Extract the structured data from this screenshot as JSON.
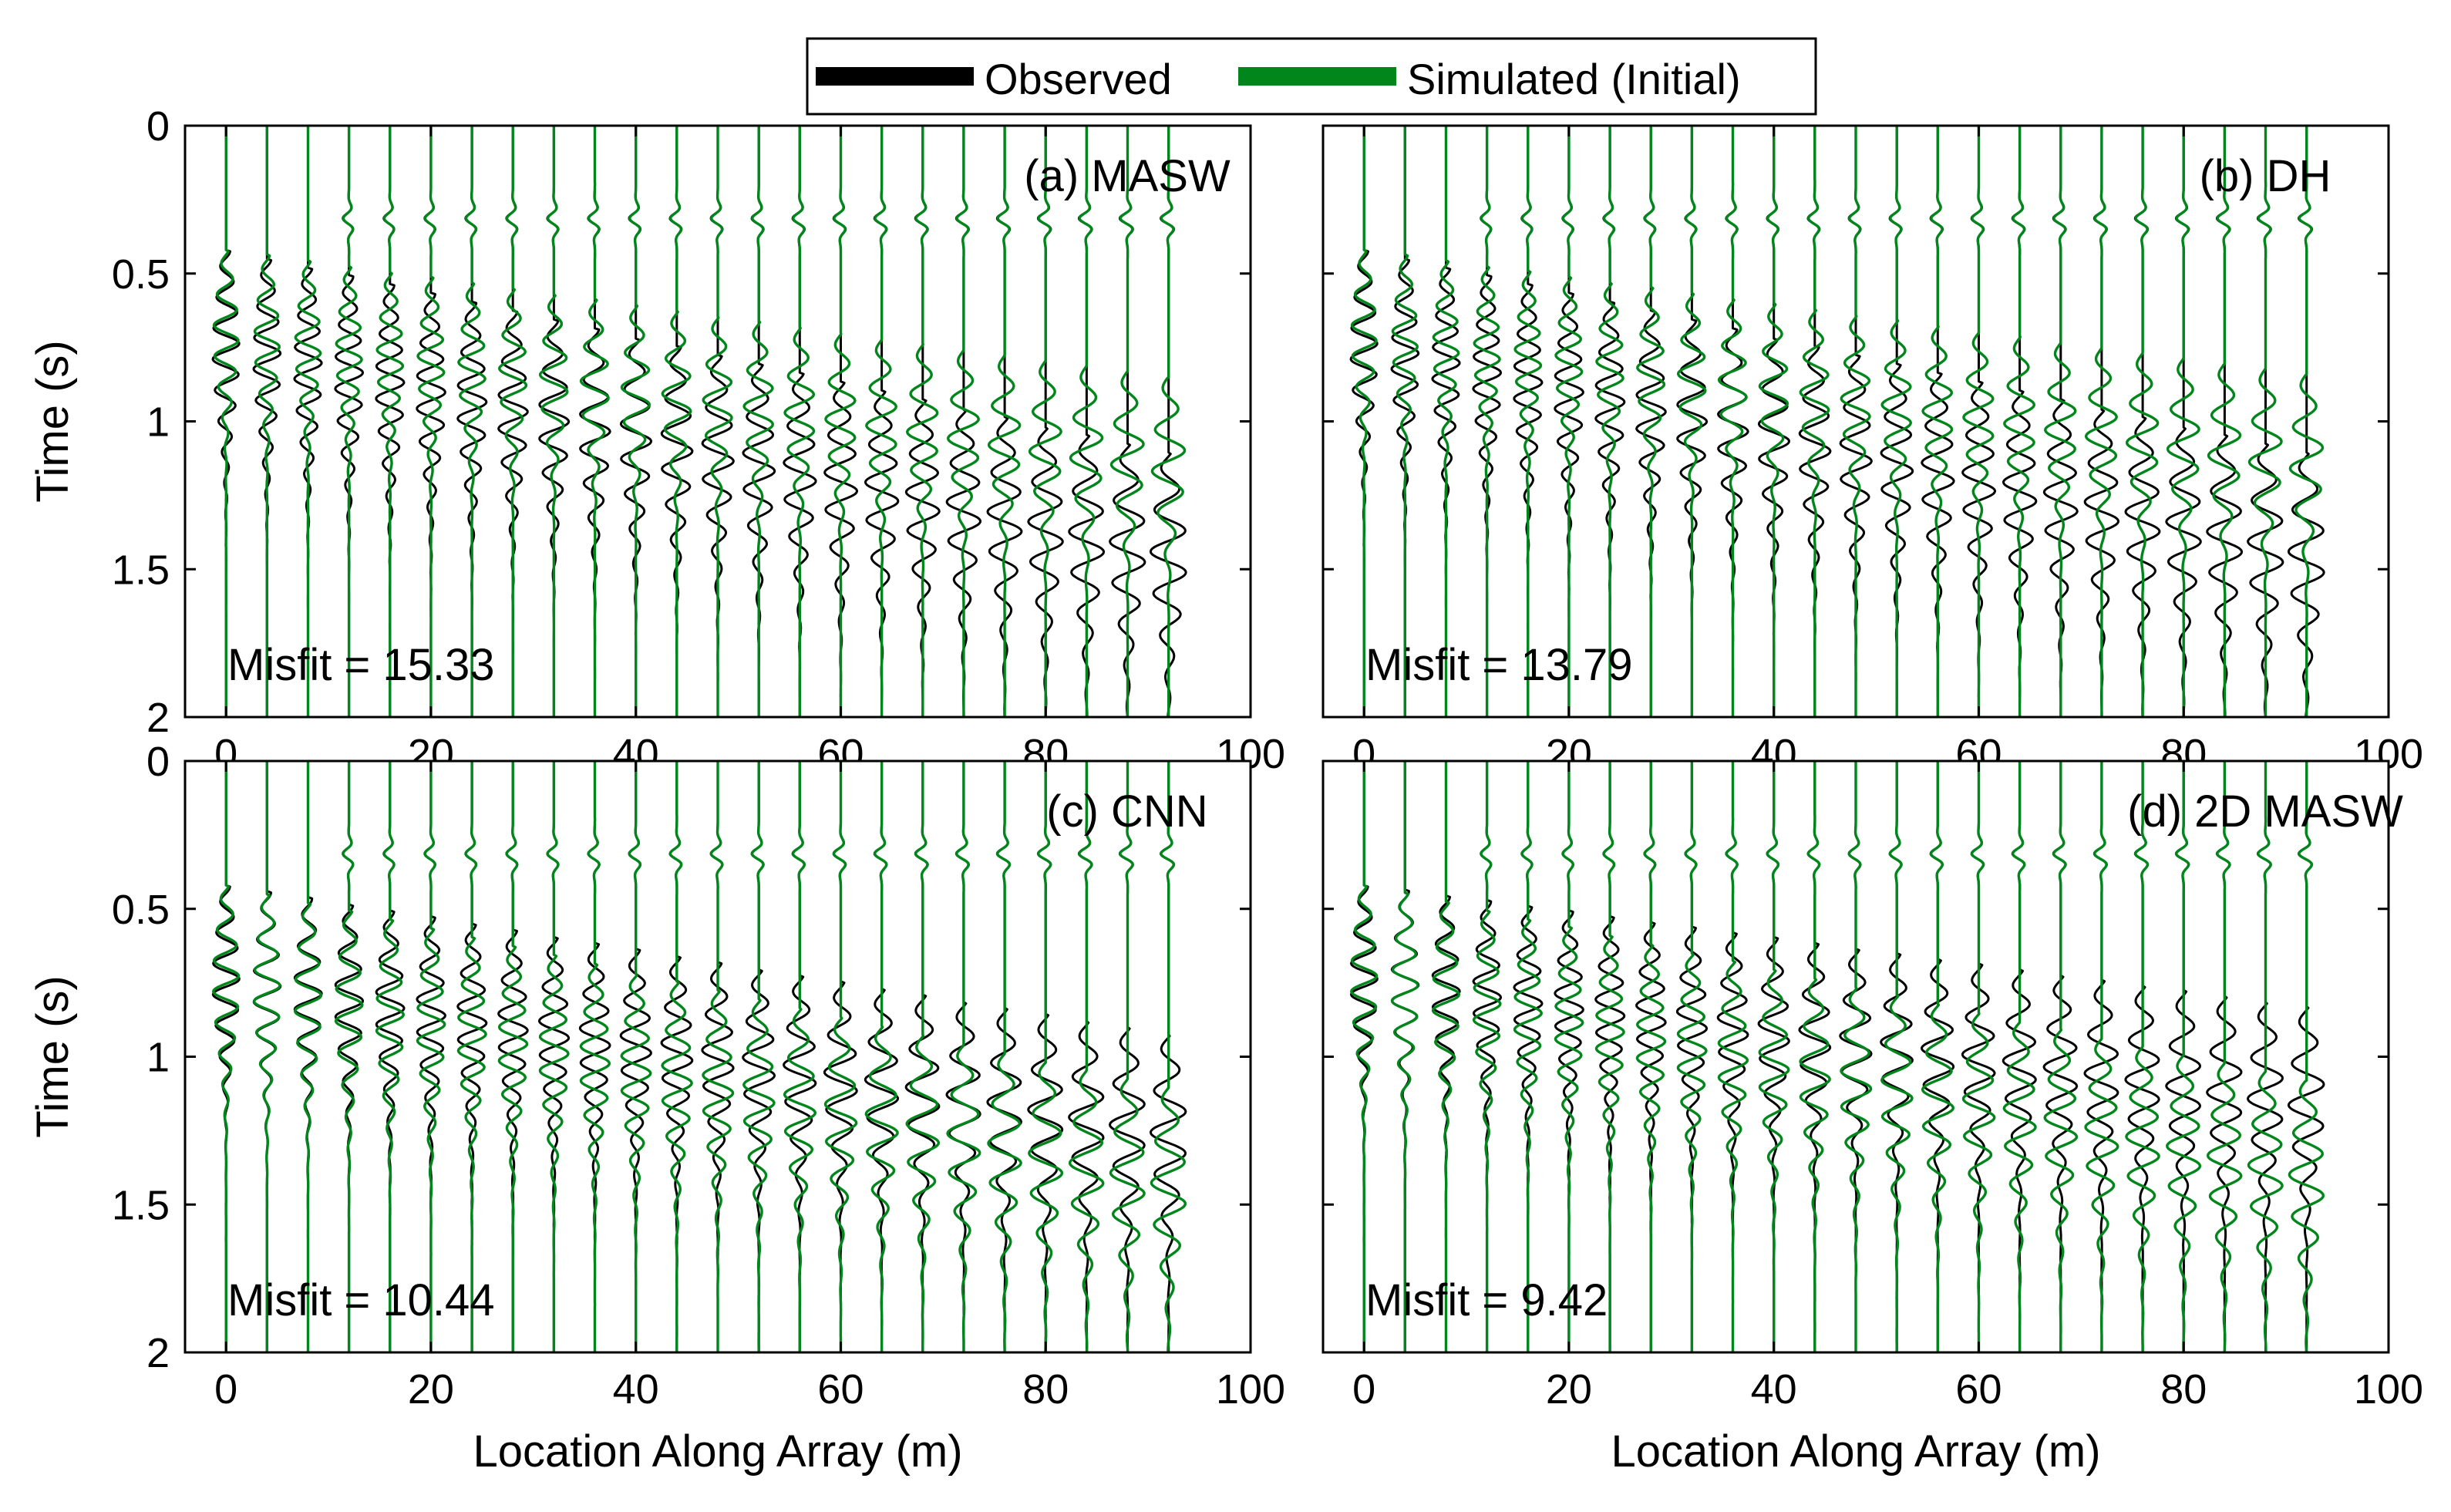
{
  "legend": {
    "entries": [
      {
        "label": "Observed",
        "color": "#000000"
      },
      {
        "label": "Simulated (Initial)",
        "color": "#00861b"
      }
    ]
  },
  "chart_data": [
    {
      "type": "line",
      "panel": "(a) MASW",
      "misfit_text": "Misfit = 15.33",
      "xlabel": "Location Along Array (m)",
      "ylabel": "Time (s)",
      "xlim": [
        -4,
        100
      ],
      "ylim": [
        2,
        0
      ],
      "xticks": [
        0,
        20,
        40,
        60,
        80,
        100
      ],
      "yticks": [
        0,
        0.5,
        1,
        1.5,
        2
      ],
      "ytick_labels": [
        "0",
        "0.5",
        "1",
        "1.5",
        "2"
      ],
      "trace_locations_m": [
        0,
        4,
        8,
        12,
        16,
        20,
        24,
        28,
        32,
        36,
        40,
        44,
        48,
        52,
        56,
        60,
        64,
        68,
        72,
        76,
        80,
        84,
        88,
        92
      ],
      "series": [
        {
          "name": "Observed",
          "color": "#000000",
          "arrival_start_s": 0.5,
          "slowness_s_per_m": 0.0075,
          "amplitude_m": 1.3,
          "duration_s": 0.75
        },
        {
          "name": "Simulated (Initial)",
          "color": "#00861b",
          "arrival_start_s": 0.5,
          "slowness_s_per_m": 0.0047,
          "amplitude_m": 1.2,
          "duration_s": 0.6
        }
      ]
    },
    {
      "type": "line",
      "panel": "(b) DH",
      "misfit_text": "Misfit = 13.79",
      "xlabel": "Location Along Array (m)",
      "ylabel": "",
      "xlim": [
        -4,
        100
      ],
      "ylim": [
        2,
        0
      ],
      "xticks": [
        0,
        20,
        40,
        60,
        80,
        100
      ],
      "yticks": [
        0,
        0.5,
        1,
        1.5,
        2
      ],
      "ytick_labels": [],
      "trace_locations_m": [
        0,
        4,
        8,
        12,
        16,
        20,
        24,
        28,
        32,
        36,
        40,
        44,
        48,
        52,
        56,
        60,
        64,
        68,
        72,
        76,
        80,
        84,
        88,
        92
      ],
      "series": [
        {
          "name": "Observed",
          "color": "#000000",
          "arrival_start_s": 0.5,
          "slowness_s_per_m": 0.0075,
          "amplitude_m": 1.3,
          "duration_s": 0.75
        },
        {
          "name": "Simulated (Initial)",
          "color": "#00861b",
          "arrival_start_s": 0.5,
          "slowness_s_per_m": 0.0046,
          "amplitude_m": 1.2,
          "duration_s": 0.6
        }
      ]
    },
    {
      "type": "line",
      "panel": "(c) CNN",
      "misfit_text": "Misfit = 10.44",
      "xlabel": "Location Along Array (m)",
      "ylabel": "Time (s)",
      "xlim": [
        -4,
        100
      ],
      "ylim": [
        2,
        0
      ],
      "xticks": [
        0,
        20,
        40,
        60,
        80,
        100
      ],
      "yticks": [
        0,
        0.5,
        1,
        1.5,
        2
      ],
      "ytick_labels": [
        "0",
        "0.5",
        "1",
        "1.5",
        "2"
      ],
      "trace_locations_m": [
        0,
        4,
        8,
        12,
        16,
        20,
        24,
        28,
        32,
        36,
        40,
        44,
        48,
        52,
        56,
        60,
        64,
        68,
        72,
        76,
        80,
        84,
        88,
        92
      ],
      "series": [
        {
          "name": "Observed",
          "color": "#000000",
          "arrival_start_s": 0.5,
          "slowness_s_per_m": 0.0055,
          "amplitude_m": 1.3,
          "duration_s": 0.7
        },
        {
          "name": "Simulated (Initial)",
          "color": "#00861b",
          "arrival_start_s": 0.5,
          "slowness_s_per_m": 0.0075,
          "amplitude_m": 1.25,
          "duration_s": 0.72
        }
      ]
    },
    {
      "type": "line",
      "panel": "(d) 2D MASW",
      "misfit_text": "Misfit = 9.42",
      "xlabel": "Location Along Array (m)",
      "ylabel": "",
      "xlim": [
        -4,
        100
      ],
      "ylim": [
        2,
        0
      ],
      "xticks": [
        0,
        20,
        40,
        60,
        80,
        100
      ],
      "yticks": [
        0,
        0.5,
        1,
        1.5,
        2
      ],
      "ytick_labels": [],
      "trace_locations_m": [
        0,
        4,
        8,
        12,
        16,
        20,
        24,
        28,
        32,
        36,
        40,
        44,
        48,
        52,
        56,
        60,
        64,
        68,
        72,
        76,
        80,
        84,
        88,
        92
      ],
      "series": [
        {
          "name": "Observed",
          "color": "#000000",
          "arrival_start_s": 0.5,
          "slowness_s_per_m": 0.0045,
          "amplitude_m": 1.3,
          "duration_s": 0.68
        },
        {
          "name": "Simulated (Initial)",
          "color": "#00861b",
          "arrival_start_s": 0.5,
          "slowness_s_per_m": 0.0072,
          "amplitude_m": 1.25,
          "duration_s": 0.72
        }
      ]
    }
  ]
}
